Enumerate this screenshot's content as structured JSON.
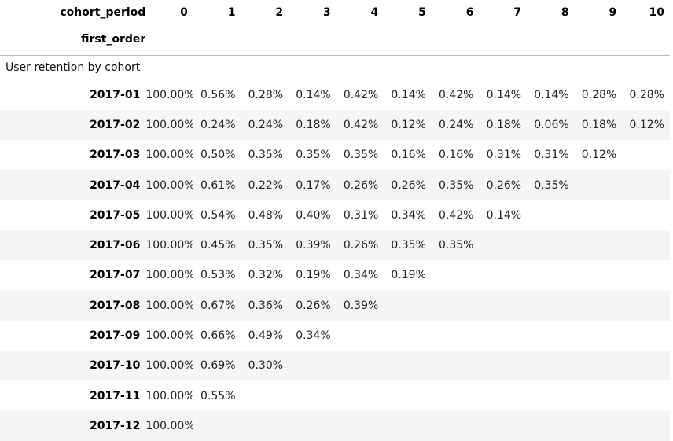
{
  "table": {
    "columns_label": "cohort_period",
    "index_label": "first_order",
    "columns": [
      "0",
      "1",
      "2",
      "3",
      "4",
      "5",
      "6",
      "7",
      "8",
      "9",
      "10"
    ],
    "caption": "User retention by cohort",
    "rows": [
      {
        "index": "2017-01",
        "cells": [
          "100.00%",
          "0.56%",
          "0.28%",
          "0.14%",
          "0.42%",
          "0.14%",
          "0.42%",
          "0.14%",
          "0.14%",
          "0.28%",
          "0.28%"
        ]
      },
      {
        "index": "2017-02",
        "cells": [
          "100.00%",
          "0.24%",
          "0.24%",
          "0.18%",
          "0.42%",
          "0.12%",
          "0.24%",
          "0.18%",
          "0.06%",
          "0.18%",
          "0.12%"
        ]
      },
      {
        "index": "2017-03",
        "cells": [
          "100.00%",
          "0.50%",
          "0.35%",
          "0.35%",
          "0.35%",
          "0.16%",
          "0.16%",
          "0.31%",
          "0.31%",
          "0.12%",
          ""
        ]
      },
      {
        "index": "2017-04",
        "cells": [
          "100.00%",
          "0.61%",
          "0.22%",
          "0.17%",
          "0.26%",
          "0.26%",
          "0.35%",
          "0.26%",
          "0.35%",
          "",
          ""
        ]
      },
      {
        "index": "2017-05",
        "cells": [
          "100.00%",
          "0.54%",
          "0.48%",
          "0.40%",
          "0.31%",
          "0.34%",
          "0.42%",
          "0.14%",
          "",
          "",
          ""
        ]
      },
      {
        "index": "2017-06",
        "cells": [
          "100.00%",
          "0.45%",
          "0.35%",
          "0.39%",
          "0.26%",
          "0.35%",
          "0.35%",
          "",
          "",
          "",
          ""
        ]
      },
      {
        "index": "2017-07",
        "cells": [
          "100.00%",
          "0.53%",
          "0.32%",
          "0.19%",
          "0.34%",
          "0.19%",
          "",
          "",
          "",
          "",
          ""
        ]
      },
      {
        "index": "2017-08",
        "cells": [
          "100.00%",
          "0.67%",
          "0.36%",
          "0.26%",
          "0.39%",
          "",
          "",
          "",
          "",
          "",
          ""
        ]
      },
      {
        "index": "2017-09",
        "cells": [
          "100.00%",
          "0.66%",
          "0.49%",
          "0.34%",
          "",
          "",
          "",
          "",
          "",
          "",
          ""
        ]
      },
      {
        "index": "2017-10",
        "cells": [
          "100.00%",
          "0.69%",
          "0.30%",
          "",
          "",
          "",
          "",
          "",
          "",
          "",
          ""
        ]
      },
      {
        "index": "2017-11",
        "cells": [
          "100.00%",
          "0.55%",
          "",
          "",
          "",
          "",
          "",
          "",
          "",
          "",
          ""
        ]
      },
      {
        "index": "2017-12",
        "cells": [
          "100.00%",
          "",
          "",
          "",
          "",
          "",
          "",
          "",
          "",
          "",
          ""
        ]
      }
    ]
  }
}
